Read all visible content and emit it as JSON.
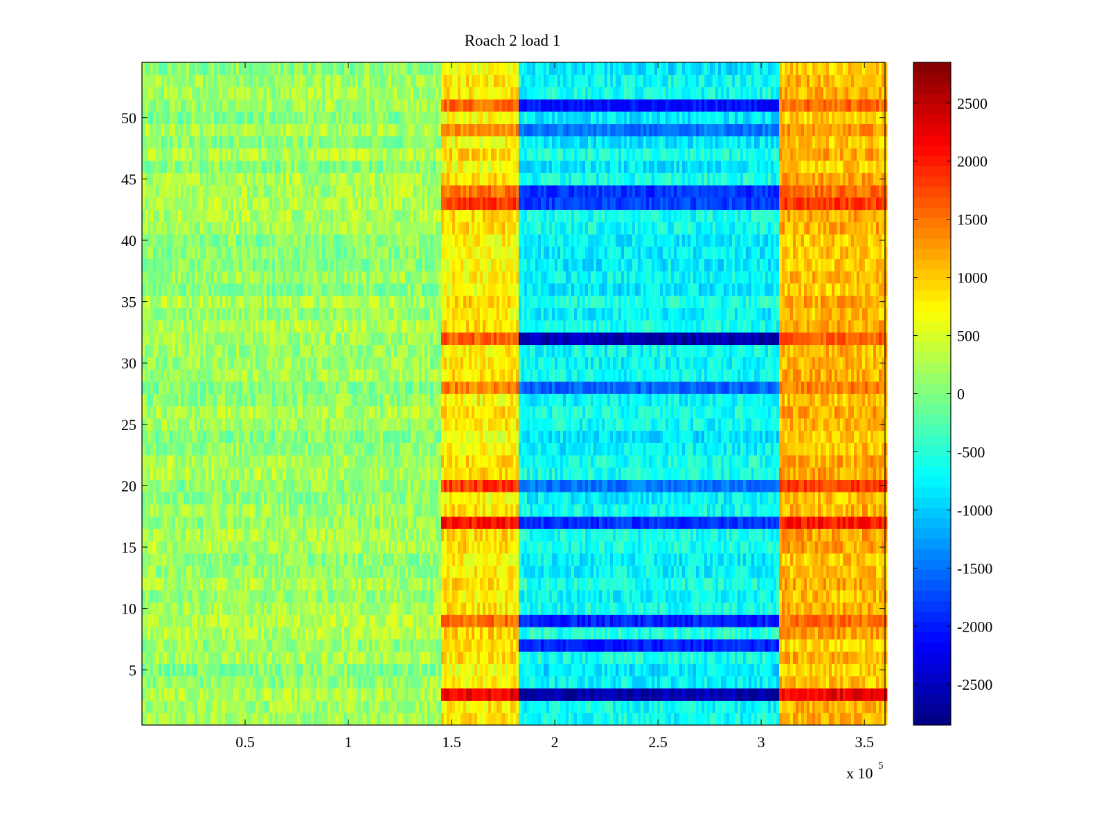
{
  "chart_data": {
    "type": "heatmap",
    "title": "Roach 2 load 1",
    "xlabel": "",
    "ylabel": "",
    "x_exponent_label": "x 10",
    "x_exponent_power": "5",
    "xlim": [
      0,
      360000
    ],
    "ylim": [
      0.5,
      54.5
    ],
    "x_ticks": [
      {
        "value": 50000,
        "label": "0.5"
      },
      {
        "value": 100000,
        "label": "1"
      },
      {
        "value": 150000,
        "label": "1.5"
      },
      {
        "value": 200000,
        "label": "2"
      },
      {
        "value": 250000,
        "label": "2.5"
      },
      {
        "value": 300000,
        "label": "3"
      },
      {
        "value": 350000,
        "label": "3.5"
      }
    ],
    "y_ticks": [
      {
        "value": 5,
        "label": "5"
      },
      {
        "value": 10,
        "label": "10"
      },
      {
        "value": 15,
        "label": "15"
      },
      {
        "value": 20,
        "label": "20"
      },
      {
        "value": 25,
        "label": "25"
      },
      {
        "value": 30,
        "label": "30"
      },
      {
        "value": 35,
        "label": "35"
      },
      {
        "value": 40,
        "label": "40"
      },
      {
        "value": 45,
        "label": "45"
      },
      {
        "value": 50,
        "label": "50"
      }
    ],
    "colorbar": {
      "colormap": "jet",
      "clim": [
        -2850,
        2850
      ],
      "ticks": [
        {
          "value": 2500,
          "label": "2500"
        },
        {
          "value": 2000,
          "label": "2000"
        },
        {
          "value": 1500,
          "label": "1500"
        },
        {
          "value": 1000,
          "label": "1000"
        },
        {
          "value": 500,
          "label": "500"
        },
        {
          "value": 0,
          "label": "0"
        },
        {
          "value": -500,
          "label": "-500"
        },
        {
          "value": -1000,
          "label": "-1000"
        },
        {
          "value": -1500,
          "label": "-1500"
        },
        {
          "value": -2000,
          "label": "-2000"
        },
        {
          "value": -2500,
          "label": "-2500"
        }
      ]
    },
    "rows": 54,
    "segments": [
      {
        "x_start": 0,
        "x_end": 145000,
        "baseline": 150
      },
      {
        "x_start": 145000,
        "x_end": 182000,
        "baseline": 800
      },
      {
        "x_start": 182000,
        "x_end": 308000,
        "baseline": -700
      },
      {
        "x_start": 308000,
        "x_end": 360000,
        "baseline": 1100
      }
    ],
    "strong_rows": [
      {
        "row": 3,
        "peak_high": 2500,
        "trough_low": -2800
      },
      {
        "row": 7,
        "peak_high": 1200,
        "trough_low": -2200
      },
      {
        "row": 9,
        "peak_high": 1800,
        "trough_low": -2200
      },
      {
        "row": 17,
        "peak_high": 2300,
        "trough_low": -2100
      },
      {
        "row": 20,
        "peak_high": 2100,
        "trough_low": -1700
      },
      {
        "row": 28,
        "peak_high": 1700,
        "trough_low": -1800
      },
      {
        "row": 32,
        "peak_high": 1900,
        "trough_low": -2800
      },
      {
        "row": 43,
        "peak_high": 2100,
        "trough_low": -2000
      },
      {
        "row": 44,
        "peak_high": 1800,
        "trough_low": -2100
      },
      {
        "row": 49,
        "peak_high": 1600,
        "trough_low": -1700
      },
      {
        "row": 51,
        "peak_high": 1800,
        "trough_low": -2300
      }
    ]
  }
}
